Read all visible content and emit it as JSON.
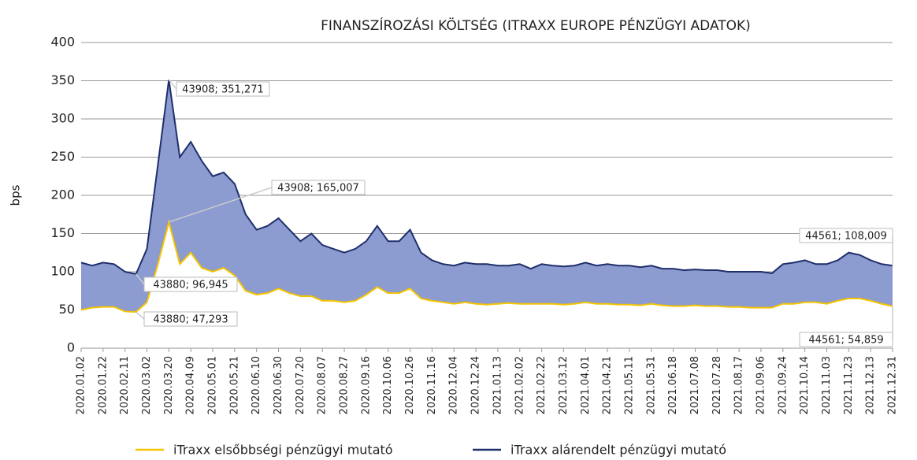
{
  "chart_data": {
    "type": "area",
    "title": "FINANSZÍROZÁSI KÖLTSÉG (ITRAXX EUROPE PÉNZÜGYI ADATOK)",
    "y_label": "bps",
    "categories": [
      "2020.01.02",
      null,
      "2020.01.22",
      null,
      "2020.02.11",
      null,
      "2020.03.02",
      null,
      "2020.03.20",
      null,
      "2020.04.09",
      null,
      "2020.05.01",
      null,
      "2020.05.21",
      null,
      "2020.06.10",
      null,
      "2020.06.30",
      null,
      "2020.07.20",
      null,
      "2020.08.07",
      null,
      "2020.08.27",
      null,
      "2020.09.16",
      null,
      "2020.10.06",
      null,
      "2020.10.26",
      null,
      "2020.11.16",
      null,
      "2020.12.04",
      null,
      "2020.12.24",
      null,
      "2021.01.13",
      null,
      "2021.02.02",
      null,
      "2021.02.22",
      null,
      "2021.03.12",
      null,
      "2021.04.01",
      null,
      "2021.04.21",
      null,
      "2021.05.11",
      null,
      "2021.05.31",
      null,
      "2021.06.18",
      null,
      "2021.07.08",
      null,
      "2021.07.28",
      null,
      "2021.08.17",
      null,
      "2021.09.06",
      null,
      "2021.09.24",
      null,
      "2021.10.14",
      null,
      "2021.11.03",
      null,
      "2021.11.23",
      null,
      "2021.12.13",
      null,
      "2021.12.31"
    ],
    "series": [
      {
        "name": "iTraxx elsőbbségi pénzügyi mutató",
        "color": "#f5c400",
        "fill": "#ffffff",
        "values": [
          50,
          53,
          54,
          54,
          48,
          47.293,
          60,
          110,
          165.007,
          110,
          125,
          105,
          100,
          105,
          95,
          75,
          70,
          72,
          78,
          72,
          68,
          68,
          62,
          62,
          60,
          62,
          70,
          80,
          72,
          72,
          78,
          65,
          62,
          60,
          58,
          60,
          58,
          57,
          58,
          59,
          58,
          58,
          58,
          58,
          57,
          58,
          60,
          58,
          58,
          57,
          57,
          56,
          58,
          56,
          55,
          55,
          56,
          55,
          55,
          54,
          54,
          53,
          53,
          53,
          58,
          58,
          60,
          60,
          58,
          62,
          65,
          65,
          62,
          58,
          54.859
        ]
      },
      {
        "name": "iTraxx alárendelt pénzügyi mutató",
        "color": "#1f2f6b",
        "fill": "#8c9bd0",
        "values": [
          112,
          108,
          112,
          110,
          100,
          96.945,
          130,
          240,
          351.271,
          250,
          270,
          245,
          225,
          230,
          215,
          175,
          155,
          160,
          170,
          155,
          140,
          150,
          135,
          130,
          125,
          130,
          140,
          160,
          140,
          140,
          155,
          125,
          115,
          110,
          108,
          112,
          110,
          110,
          108,
          108,
          110,
          104,
          110,
          108,
          107,
          108,
          112,
          108,
          110,
          108,
          108,
          106,
          108,
          104,
          104,
          102,
          103,
          102,
          102,
          100,
          100,
          100,
          100,
          98,
          110,
          112,
          115,
          110,
          110,
          115,
          125,
          122,
          115,
          110,
          108.009
        ]
      }
    ],
    "annotations": [
      "43908; 351,271",
      "43908; 165,007",
      "43880; 96,945",
      "43880; 47,293",
      "44561; 108,009",
      "44561; 54,859"
    ],
    "ylim": [
      0,
      400
    ],
    "yticks": [
      0,
      50,
      100,
      150,
      200,
      250,
      300,
      350,
      400
    ],
    "grid": true
  }
}
